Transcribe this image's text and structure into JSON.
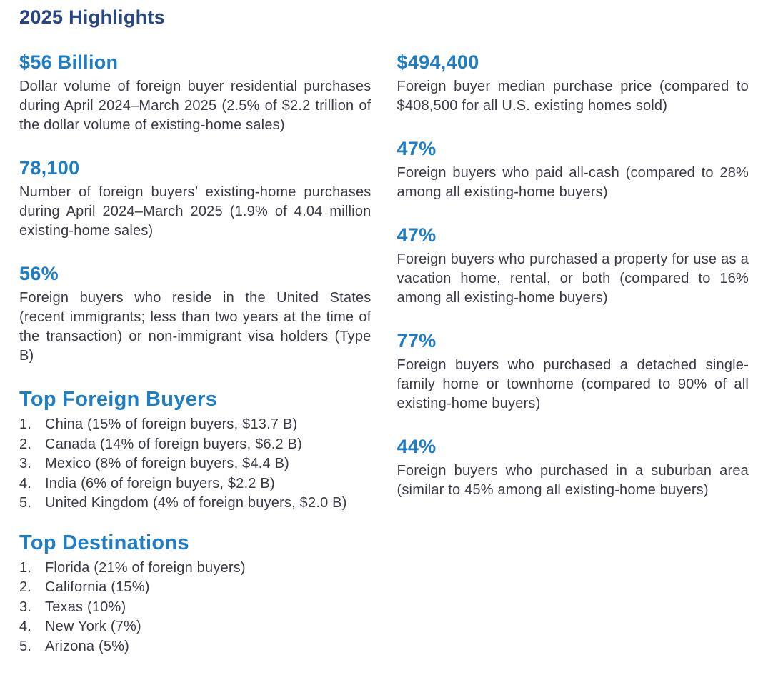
{
  "page": {
    "title": "2025 Highlights"
  },
  "colors": {
    "title_navy": "#28467F",
    "stat_blue": "#1F7EC3",
    "body_text": "#3A3A44",
    "background": "#FFFFFF"
  },
  "left_column": {
    "stats": [
      {
        "value": "$56 Billion",
        "description": "Dollar volume of foreign buyer residential purchases during April 2024–March 2025 (2.5% of $2.2 trillion of the dollar volume of existing-home sales)"
      },
      {
        "value": "78,100",
        "description": "Number of foreign buyers’ existing-home purchases during April 2024–March 2025 (1.9% of 4.04 million existing-home sales)"
      },
      {
        "value": "56%",
        "description": "Foreign buyers who reside in the United States (recent immigrants; less than two years at the time of the transaction) or non-immigrant visa holders (Type B)"
      }
    ],
    "top_foreign_buyers": {
      "heading": "Top Foreign Buyers",
      "items": [
        {
          "rank": "1.",
          "label": "China (15% of foreign buyers, $13.7 B)"
        },
        {
          "rank": "2.",
          "label": "Canada (14% of foreign buyers, $6.2 B)"
        },
        {
          "rank": "3.",
          "label": "Mexico (8% of foreign buyers, $4.4 B)"
        },
        {
          "rank": "4.",
          "label": "India (6% of foreign buyers, $2.2 B)"
        },
        {
          "rank": "5.",
          "label": "United Kingdom (4% of foreign buyers, $2.0 B)"
        }
      ]
    },
    "top_destinations": {
      "heading": "Top Destinations",
      "items": [
        {
          "rank": "1.",
          "label": "Florida (21% of foreign buyers)"
        },
        {
          "rank": "2.",
          "label": "California (15%)"
        },
        {
          "rank": "3.",
          "label": "Texas (10%)"
        },
        {
          "rank": "4.",
          "label": "New York (7%)"
        },
        {
          "rank": "5.",
          "label": "Arizona (5%)"
        }
      ]
    }
  },
  "right_column": {
    "stats": [
      {
        "value": "$494,400",
        "description": "Foreign buyer median purchase price (compared to $408,500 for all U.S. existing homes sold)"
      },
      {
        "value": "47%",
        "description": "Foreign buyers who paid all-cash (compared to 28% among all existing-home buyers)"
      },
      {
        "value": "47%",
        "description": "Foreign buyers who purchased a property for use as a vacation home, rental, or both (compared to 16% among all existing-home buyers)"
      },
      {
        "value": "77%",
        "description": "Foreign buyers who purchased a detached single-family home or townhome (compared to 90% of all existing-home buyers)"
      },
      {
        "value": "44%",
        "description": "Foreign buyers who purchased in a suburban area (similar to 45% among all existing-home buyers)"
      }
    ]
  }
}
